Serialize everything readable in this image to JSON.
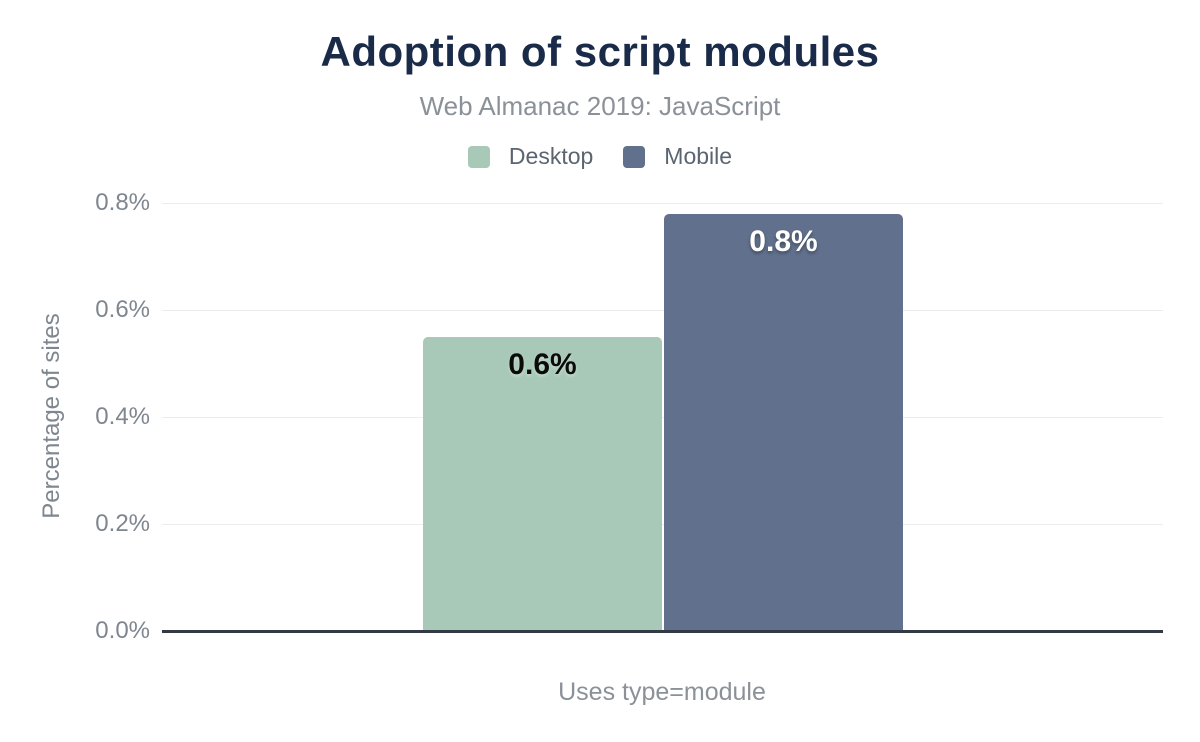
{
  "chart_data": {
    "type": "bar",
    "title": "Adoption of script modules",
    "subtitle": "Web Almanac 2019: JavaScript",
    "xlabel": "Uses type=module",
    "ylabel": "Percentage of sites",
    "categories": [
      "Uses type=module"
    ],
    "series": [
      {
        "name": "Desktop",
        "value": 0.55,
        "displayed_label": "0.6%",
        "color": "#a8c9b8",
        "label_color": "#0b0b0b"
      },
      {
        "name": "Mobile",
        "value": 0.78,
        "displayed_label": "0.8%",
        "color": "#61708c",
        "label_color": "#ffffff"
      }
    ],
    "ylim": [
      0,
      0.8
    ],
    "yticks": [
      {
        "value": 0.0,
        "label": "0.0%"
      },
      {
        "value": 0.2,
        "label": "0.2%"
      },
      {
        "value": 0.4,
        "label": "0.4%"
      },
      {
        "value": 0.6,
        "label": "0.6%"
      },
      {
        "value": 0.8,
        "label": "0.8%"
      }
    ],
    "grid": true,
    "legend_position": "top",
    "colors": {
      "title": "#1a2b49",
      "subtitle": "#8b9198",
      "axis_text": "#7e868f",
      "legend_text": "#5b6570",
      "gridline": "#ececf0",
      "baseline": "#343a43",
      "background": "#ffffff"
    }
  }
}
